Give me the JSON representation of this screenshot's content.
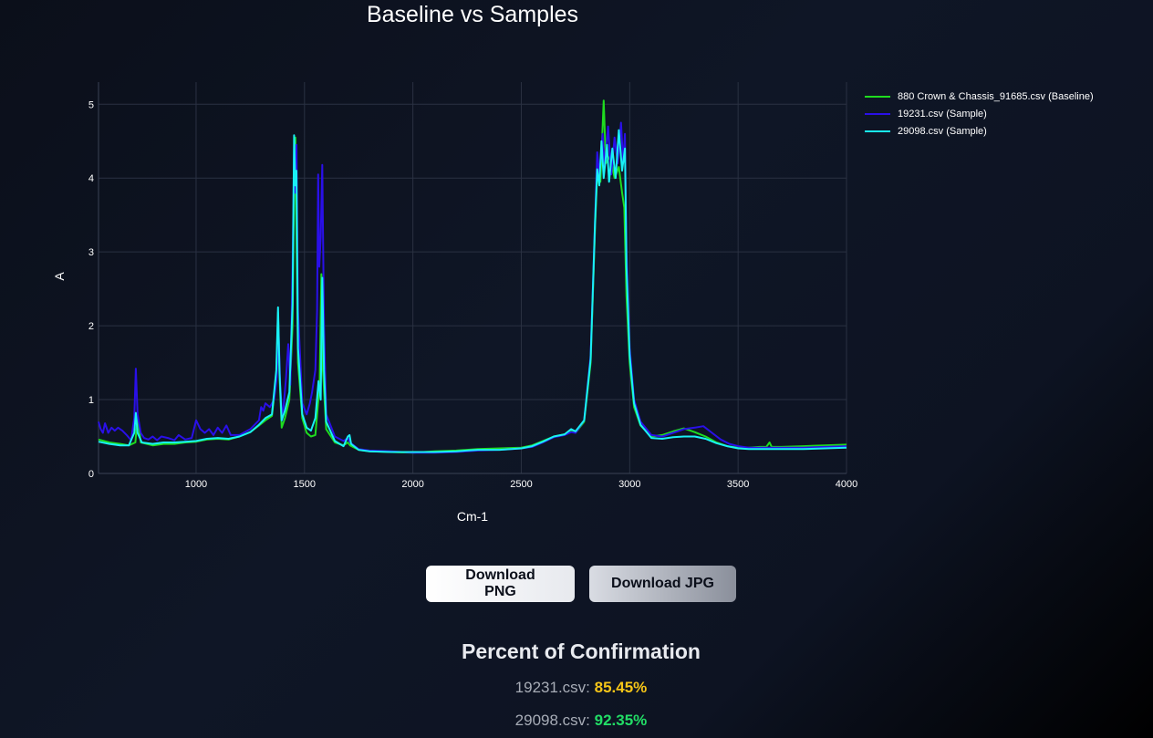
{
  "chart_data": {
    "type": "line",
    "title": "Baseline vs Samples",
    "xlabel": "Cm-1",
    "ylabel": "A",
    "xlim": [
      550,
      4000
    ],
    "ylim": [
      0,
      5.3
    ],
    "xticks": [
      1000,
      1500,
      2000,
      2500,
      3000,
      3500,
      4000
    ],
    "yticks": [
      0,
      1,
      2,
      3,
      4,
      5
    ],
    "grid": true,
    "legend_position": "top-right outside",
    "series": [
      {
        "name": "880 Crown & Chassis_91685.csv (Baseline)",
        "color": "#1fdc1f",
        "points": [
          [
            550,
            0.46
          ],
          [
            600,
            0.42
          ],
          [
            650,
            0.4
          ],
          [
            690,
            0.38
          ],
          [
            720,
            0.42
          ],
          [
            730,
            0.78
          ],
          [
            745,
            0.42
          ],
          [
            800,
            0.38
          ],
          [
            850,
            0.4
          ],
          [
            900,
            0.4
          ],
          [
            950,
            0.42
          ],
          [
            1000,
            0.43
          ],
          [
            1050,
            0.46
          ],
          [
            1100,
            0.47
          ],
          [
            1150,
            0.46
          ],
          [
            1200,
            0.5
          ],
          [
            1250,
            0.56
          ],
          [
            1290,
            0.65
          ],
          [
            1320,
            0.72
          ],
          [
            1350,
            0.78
          ],
          [
            1370,
            1.3
          ],
          [
            1378,
            2.18
          ],
          [
            1385,
            1.3
          ],
          [
            1395,
            0.62
          ],
          [
            1410,
            0.75
          ],
          [
            1430,
            1.0
          ],
          [
            1445,
            2.0
          ],
          [
            1452,
            3.8
          ],
          [
            1458,
            4.55
          ],
          [
            1463,
            3.2
          ],
          [
            1470,
            1.5
          ],
          [
            1490,
            0.75
          ],
          [
            1510,
            0.55
          ],
          [
            1530,
            0.5
          ],
          [
            1550,
            0.52
          ],
          [
            1570,
            1.2
          ],
          [
            1578,
            2.7
          ],
          [
            1585,
            1.4
          ],
          [
            1600,
            0.6
          ],
          [
            1640,
            0.42
          ],
          [
            1680,
            0.38
          ],
          [
            1700,
            0.42
          ],
          [
            1710,
            0.38
          ],
          [
            1750,
            0.32
          ],
          [
            1800,
            0.3
          ],
          [
            1900,
            0.29
          ],
          [
            2000,
            0.28
          ],
          [
            2100,
            0.3
          ],
          [
            2200,
            0.31
          ],
          [
            2300,
            0.33
          ],
          [
            2400,
            0.34
          ],
          [
            2500,
            0.35
          ],
          [
            2550,
            0.38
          ],
          [
            2600,
            0.44
          ],
          [
            2650,
            0.5
          ],
          [
            2700,
            0.53
          ],
          [
            2730,
            0.58
          ],
          [
            2750,
            0.55
          ],
          [
            2790,
            0.7
          ],
          [
            2820,
            1.5
          ],
          [
            2840,
            3.3
          ],
          [
            2850,
            4.05
          ],
          [
            2865,
            3.95
          ],
          [
            2880,
            5.05
          ],
          [
            2890,
            4.2
          ],
          [
            2910,
            4.3
          ],
          [
            2930,
            4.0
          ],
          [
            2950,
            4.15
          ],
          [
            2965,
            3.8
          ],
          [
            2975,
            3.6
          ],
          [
            2985,
            2.4
          ],
          [
            3000,
            1.5
          ],
          [
            3020,
            0.9
          ],
          [
            3050,
            0.65
          ],
          [
            3100,
            0.5
          ],
          [
            3150,
            0.52
          ],
          [
            3200,
            0.57
          ],
          [
            3250,
            0.61
          ],
          [
            3300,
            0.56
          ],
          [
            3350,
            0.5
          ],
          [
            3400,
            0.42
          ],
          [
            3450,
            0.37
          ],
          [
            3500,
            0.35
          ],
          [
            3550,
            0.35
          ],
          [
            3600,
            0.36
          ],
          [
            3630,
            0.36
          ],
          [
            3645,
            0.42
          ],
          [
            3655,
            0.36
          ],
          [
            3700,
            0.36
          ],
          [
            3800,
            0.37
          ],
          [
            3900,
            0.38
          ],
          [
            4000,
            0.39
          ]
        ]
      },
      {
        "name": "19231.csv (Sample)",
        "color": "#2a10e8",
        "points": [
          [
            550,
            0.7
          ],
          [
            560,
            0.6
          ],
          [
            570,
            0.55
          ],
          [
            580,
            0.68
          ],
          [
            595,
            0.55
          ],
          [
            610,
            0.62
          ],
          [
            625,
            0.58
          ],
          [
            640,
            0.62
          ],
          [
            660,
            0.58
          ],
          [
            680,
            0.52
          ],
          [
            700,
            0.45
          ],
          [
            715,
            0.75
          ],
          [
            722,
            1.42
          ],
          [
            730,
            0.8
          ],
          [
            745,
            0.55
          ],
          [
            760,
            0.48
          ],
          [
            780,
            0.46
          ],
          [
            800,
            0.5
          ],
          [
            820,
            0.45
          ],
          [
            840,
            0.5
          ],
          [
            870,
            0.48
          ],
          [
            900,
            0.45
          ],
          [
            920,
            0.52
          ],
          [
            950,
            0.46
          ],
          [
            980,
            0.48
          ],
          [
            1000,
            0.72
          ],
          [
            1020,
            0.6
          ],
          [
            1040,
            0.55
          ],
          [
            1060,
            0.6
          ],
          [
            1080,
            0.52
          ],
          [
            1100,
            0.62
          ],
          [
            1120,
            0.55
          ],
          [
            1140,
            0.65
          ],
          [
            1160,
            0.52
          ],
          [
            1200,
            0.52
          ],
          [
            1250,
            0.6
          ],
          [
            1290,
            0.72
          ],
          [
            1300,
            0.9
          ],
          [
            1310,
            0.85
          ],
          [
            1320,
            0.95
          ],
          [
            1340,
            0.9
          ],
          [
            1360,
            1.0
          ],
          [
            1372,
            1.3
          ],
          [
            1380,
            1.95
          ],
          [
            1388,
            1.2
          ],
          [
            1398,
            0.72
          ],
          [
            1415,
            1.3
          ],
          [
            1425,
            1.75
          ],
          [
            1435,
            1.2
          ],
          [
            1445,
            2.8
          ],
          [
            1452,
            4.4
          ],
          [
            1458,
            3.8
          ],
          [
            1463,
            4.45
          ],
          [
            1470,
            2.2
          ],
          [
            1490,
            0.95
          ],
          [
            1510,
            0.8
          ],
          [
            1525,
            0.95
          ],
          [
            1535,
            1.1
          ],
          [
            1550,
            1.4
          ],
          [
            1558,
            2.2
          ],
          [
            1563,
            4.05
          ],
          [
            1568,
            2.8
          ],
          [
            1575,
            3.2
          ],
          [
            1582,
            4.18
          ],
          [
            1590,
            2.0
          ],
          [
            1600,
            0.8
          ],
          [
            1640,
            0.5
          ],
          [
            1680,
            0.44
          ],
          [
            1700,
            0.48
          ],
          [
            1710,
            0.42
          ],
          [
            1750,
            0.33
          ],
          [
            1800,
            0.31
          ],
          [
            1900,
            0.3
          ],
          [
            2000,
            0.28
          ],
          [
            2100,
            0.28
          ],
          [
            2200,
            0.29
          ],
          [
            2300,
            0.31
          ],
          [
            2400,
            0.32
          ],
          [
            2500,
            0.34
          ],
          [
            2550,
            0.36
          ],
          [
            2600,
            0.42
          ],
          [
            2650,
            0.49
          ],
          [
            2700,
            0.52
          ],
          [
            2730,
            0.56
          ],
          [
            2750,
            0.55
          ],
          [
            2790,
            0.72
          ],
          [
            2820,
            1.6
          ],
          [
            2840,
            3.4
          ],
          [
            2850,
            4.35
          ],
          [
            2860,
            4.05
          ],
          [
            2875,
            4.6
          ],
          [
            2885,
            4.15
          ],
          [
            2900,
            4.7
          ],
          [
            2915,
            4.05
          ],
          [
            2930,
            4.55
          ],
          [
            2945,
            4.2
          ],
          [
            2960,
            4.75
          ],
          [
            2970,
            4.2
          ],
          [
            2978,
            4.6
          ],
          [
            2985,
            3.0
          ],
          [
            3000,
            1.7
          ],
          [
            3020,
            1.0
          ],
          [
            3050,
            0.7
          ],
          [
            3100,
            0.52
          ],
          [
            3150,
            0.5
          ],
          [
            3200,
            0.55
          ],
          [
            3250,
            0.6
          ],
          [
            3300,
            0.62
          ],
          [
            3340,
            0.64
          ],
          [
            3380,
            0.55
          ],
          [
            3420,
            0.46
          ],
          [
            3460,
            0.4
          ],
          [
            3500,
            0.37
          ],
          [
            3550,
            0.35
          ],
          [
            3600,
            0.35
          ],
          [
            3700,
            0.35
          ],
          [
            3800,
            0.35
          ],
          [
            3900,
            0.36
          ],
          [
            4000,
            0.37
          ]
        ]
      },
      {
        "name": "29098.csv (Sample)",
        "color": "#19f0f5",
        "points": [
          [
            550,
            0.43
          ],
          [
            600,
            0.4
          ],
          [
            650,
            0.38
          ],
          [
            690,
            0.38
          ],
          [
            715,
            0.55
          ],
          [
            722,
            0.82
          ],
          [
            730,
            0.55
          ],
          [
            750,
            0.42
          ],
          [
            800,
            0.4
          ],
          [
            850,
            0.42
          ],
          [
            900,
            0.42
          ],
          [
            950,
            0.43
          ],
          [
            1000,
            0.44
          ],
          [
            1050,
            0.47
          ],
          [
            1100,
            0.48
          ],
          [
            1150,
            0.47
          ],
          [
            1200,
            0.5
          ],
          [
            1250,
            0.56
          ],
          [
            1290,
            0.66
          ],
          [
            1320,
            0.75
          ],
          [
            1350,
            0.8
          ],
          [
            1370,
            1.4
          ],
          [
            1378,
            2.25
          ],
          [
            1385,
            1.35
          ],
          [
            1395,
            0.72
          ],
          [
            1410,
            0.85
          ],
          [
            1430,
            1.1
          ],
          [
            1445,
            2.3
          ],
          [
            1452,
            4.58
          ],
          [
            1458,
            3.9
          ],
          [
            1463,
            4.1
          ],
          [
            1470,
            1.7
          ],
          [
            1490,
            0.8
          ],
          [
            1510,
            0.62
          ],
          [
            1530,
            0.58
          ],
          [
            1550,
            0.75
          ],
          [
            1565,
            1.25
          ],
          [
            1575,
            1.0
          ],
          [
            1582,
            2.65
          ],
          [
            1590,
            1.4
          ],
          [
            1600,
            0.7
          ],
          [
            1640,
            0.44
          ],
          [
            1680,
            0.37
          ],
          [
            1700,
            0.5
          ],
          [
            1708,
            0.52
          ],
          [
            1715,
            0.4
          ],
          [
            1750,
            0.32
          ],
          [
            1800,
            0.3
          ],
          [
            1900,
            0.29
          ],
          [
            2000,
            0.29
          ],
          [
            2100,
            0.29
          ],
          [
            2200,
            0.3
          ],
          [
            2300,
            0.32
          ],
          [
            2400,
            0.32
          ],
          [
            2500,
            0.34
          ],
          [
            2550,
            0.37
          ],
          [
            2600,
            0.43
          ],
          [
            2650,
            0.5
          ],
          [
            2700,
            0.53
          ],
          [
            2730,
            0.6
          ],
          [
            2750,
            0.57
          ],
          [
            2790,
            0.72
          ],
          [
            2820,
            1.55
          ],
          [
            2840,
            3.4
          ],
          [
            2850,
            4.12
          ],
          [
            2860,
            3.9
          ],
          [
            2870,
            4.5
          ],
          [
            2880,
            4.0
          ],
          [
            2895,
            4.45
          ],
          [
            2905,
            3.95
          ],
          [
            2920,
            4.4
          ],
          [
            2935,
            4.0
          ],
          [
            2950,
            4.65
          ],
          [
            2965,
            4.1
          ],
          [
            2978,
            4.4
          ],
          [
            2985,
            2.8
          ],
          [
            3000,
            1.6
          ],
          [
            3020,
            0.95
          ],
          [
            3050,
            0.66
          ],
          [
            3100,
            0.48
          ],
          [
            3150,
            0.47
          ],
          [
            3200,
            0.49
          ],
          [
            3250,
            0.5
          ],
          [
            3300,
            0.5
          ],
          [
            3350,
            0.47
          ],
          [
            3400,
            0.41
          ],
          [
            3450,
            0.37
          ],
          [
            3500,
            0.34
          ],
          [
            3550,
            0.33
          ],
          [
            3600,
            0.33
          ],
          [
            3700,
            0.33
          ],
          [
            3800,
            0.33
          ],
          [
            3900,
            0.34
          ],
          [
            4000,
            0.35
          ]
        ]
      }
    ]
  },
  "buttons": {
    "png_label": "Download PNG",
    "jpg_label": "Download JPG"
  },
  "confirmation": {
    "title": "Percent of Confirmation",
    "rows": [
      {
        "file": "19231.csv:",
        "percent": "85.45%",
        "color": "#f5c518"
      },
      {
        "file": "29098.csv:",
        "percent": "92.35%",
        "color": "#22dd66"
      }
    ]
  }
}
